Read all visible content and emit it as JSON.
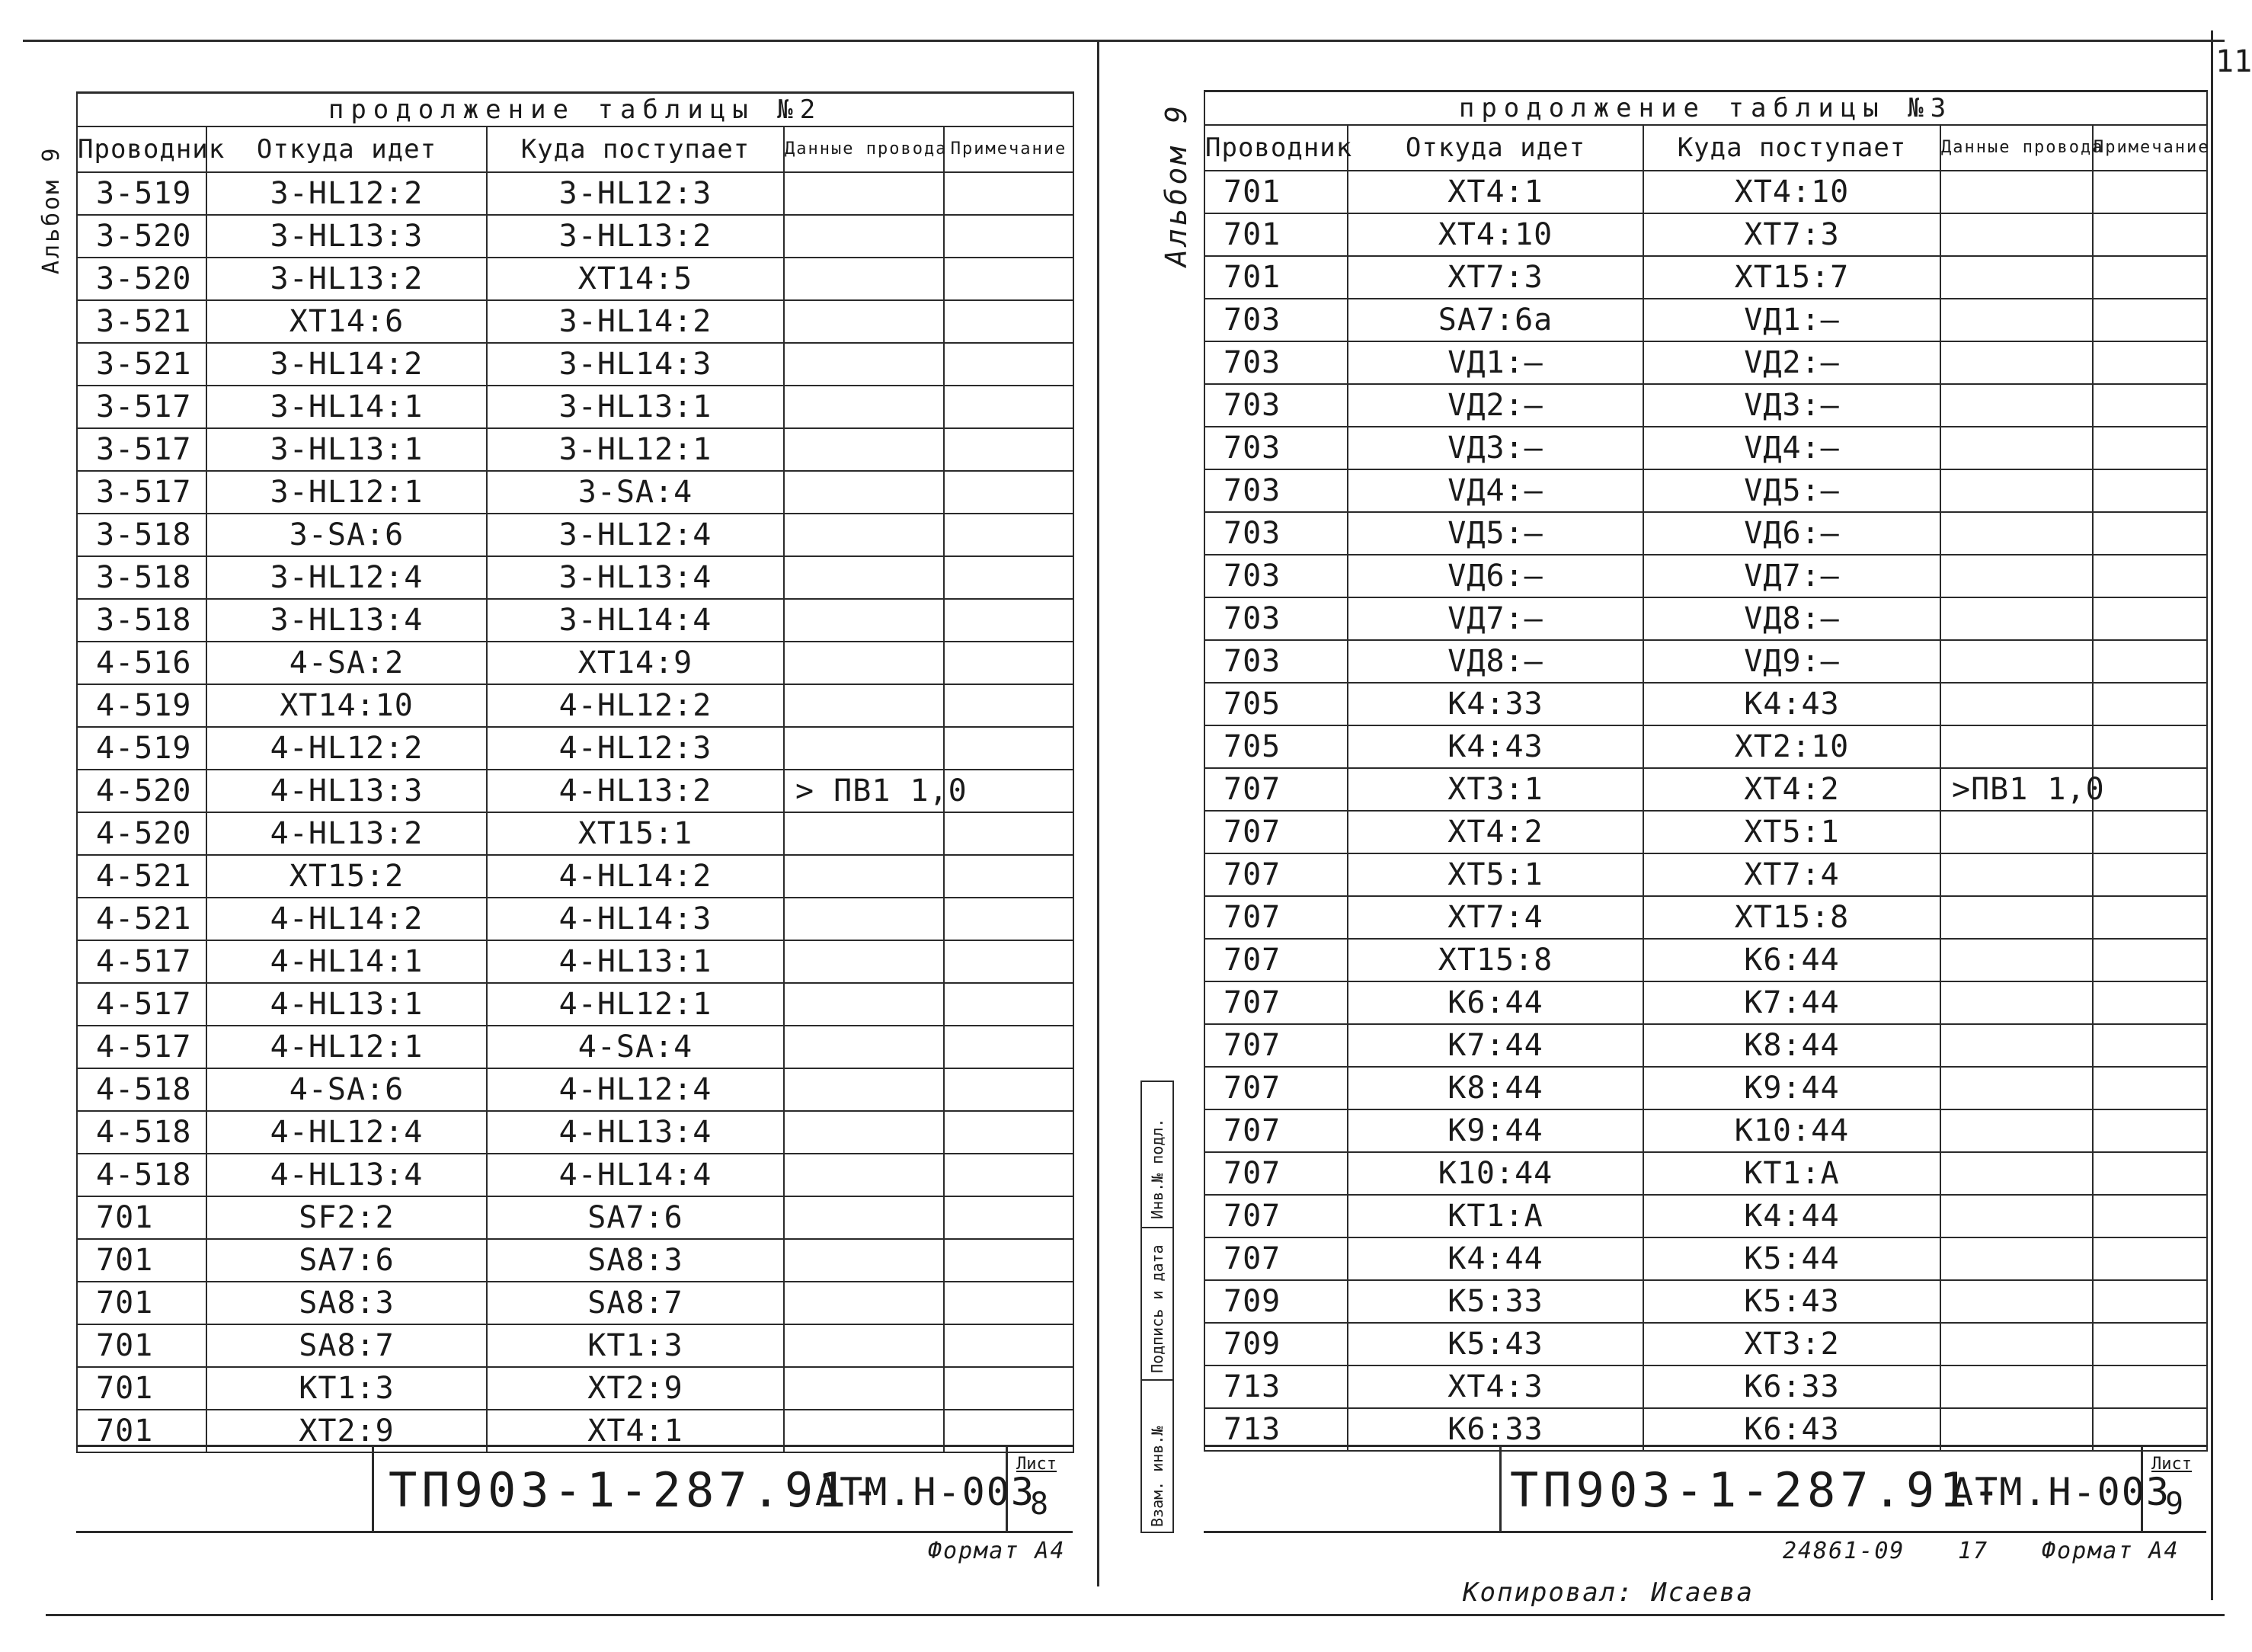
{
  "left_sheet": {
    "caption": "продолжение таблицы №2",
    "album_label": "Альбом 9",
    "headers": [
      "Проводник",
      "Откуда идет",
      "Куда поступает",
      "Данные провода",
      "Примечание"
    ],
    "rows": [
      [
        "3-519",
        "3-HL12:2",
        "3-HL12:3",
        "",
        ""
      ],
      [
        "3-520",
        "3-HL13:3",
        "3-HL13:2",
        "",
        ""
      ],
      [
        "3-520",
        "3-HL13:2",
        "XT14:5",
        "",
        ""
      ],
      [
        "3-521",
        "XT14:6",
        "3-HL14:2",
        "",
        ""
      ],
      [
        "3-521",
        "3-HL14:2",
        "3-HL14:3",
        "",
        ""
      ],
      [
        "3-517",
        "3-HL14:1",
        "3-HL13:1",
        "",
        ""
      ],
      [
        "3-517",
        "3-HL13:1",
        "3-HL12:1",
        "",
        ""
      ],
      [
        "3-517",
        "3-HL12:1",
        "3-SA:4",
        "",
        ""
      ],
      [
        "3-518",
        "3-SA:6",
        "3-HL12:4",
        "",
        ""
      ],
      [
        "3-518",
        "3-HL12:4",
        "3-HL13:4",
        "",
        ""
      ],
      [
        "3-518",
        "3-HL13:4",
        "3-HL14:4",
        "",
        ""
      ],
      [
        "4-516",
        "4-SA:2",
        "XT14:9",
        "",
        ""
      ],
      [
        "4-519",
        "XT14:10",
        "4-HL12:2",
        "",
        ""
      ],
      [
        "4-519",
        "4-HL12:2",
        "4-HL12:3",
        "",
        ""
      ],
      [
        "4-520",
        "4-HL13:3",
        "4-HL13:2",
        "> ПВ1 1,0",
        ""
      ],
      [
        "4-520",
        "4-HL13:2",
        "XT15:1",
        "",
        ""
      ],
      [
        "4-521",
        "XT15:2",
        "4-HL14:2",
        "",
        ""
      ],
      [
        "4-521",
        "4-HL14:2",
        "4-HL14:3",
        "",
        ""
      ],
      [
        "4-517",
        "4-HL14:1",
        "4-HL13:1",
        "",
        ""
      ],
      [
        "4-517",
        "4-HL13:1",
        "4-HL12:1",
        "",
        ""
      ],
      [
        "4-517",
        "4-HL12:1",
        "4-SA:4",
        "",
        ""
      ],
      [
        "4-518",
        "4-SA:6",
        "4-HL12:4",
        "",
        ""
      ],
      [
        "4-518",
        "4-HL12:4",
        "4-HL13:4",
        "",
        ""
      ],
      [
        "4-518",
        "4-HL13:4",
        "4-HL14:4",
        "",
        ""
      ],
      [
        "701",
        "SF2:2",
        "SA7:6",
        "",
        ""
      ],
      [
        "701",
        "SA7:6",
        "SA8:3",
        "",
        ""
      ],
      [
        "701",
        "SA8:3",
        "SA8:7",
        "",
        ""
      ],
      [
        "701",
        "SA8:7",
        "KT1:3",
        "",
        ""
      ],
      [
        "701",
        "KT1:3",
        "XT2:9",
        "",
        ""
      ],
      [
        "701",
        "XT2:9",
        "XT4:1",
        "",
        ""
      ]
    ],
    "doc_code": "ТП903-1-287.91-",
    "doc_suffix": "АТМ.Н-003",
    "sheet_label": "Лист",
    "sheet_number": "8",
    "format": "Формат А4"
  },
  "right_sheet": {
    "caption": "продолжение таблицы №3",
    "album_label": "Альбом 9",
    "headers": [
      "Проводник",
      "Откуда идет",
      "Куда поступает",
      "Данные провода",
      "Примечание"
    ],
    "rows": [
      [
        "701",
        "XT4:1",
        "XT4:10",
        "",
        ""
      ],
      [
        "701",
        "XT4:10",
        "XT7:3",
        "",
        ""
      ],
      [
        "701",
        "XT7:3",
        "XT15:7",
        "",
        ""
      ],
      [
        "703",
        "SA7:6a",
        "VД1:—",
        "",
        ""
      ],
      [
        "703",
        "VД1:—",
        "VД2:—",
        "",
        ""
      ],
      [
        "703",
        "VД2:—",
        "VД3:—",
        "",
        ""
      ],
      [
        "703",
        "VД3:—",
        "VД4:—",
        "",
        ""
      ],
      [
        "703",
        "VД4:—",
        "VД5:—",
        "",
        ""
      ],
      [
        "703",
        "VД5:—",
        "VД6:—",
        "",
        ""
      ],
      [
        "703",
        "VД6:—",
        "VД7:—",
        "",
        ""
      ],
      [
        "703",
        "VД7:—",
        "VД8:—",
        "",
        ""
      ],
      [
        "703",
        "VД8:—",
        "VД9:—",
        "",
        ""
      ],
      [
        "705",
        "K4:33",
        "K4:43",
        "",
        ""
      ],
      [
        "705",
        "K4:43",
        "XT2:10",
        "",
        ""
      ],
      [
        "707",
        "XT3:1",
        "XT4:2",
        ">ПВ1 1,0",
        ""
      ],
      [
        "707",
        "XT4:2",
        "XT5:1",
        "",
        ""
      ],
      [
        "707",
        "XT5:1",
        "XT7:4",
        "",
        ""
      ],
      [
        "707",
        "XT7:4",
        "XT15:8",
        "",
        ""
      ],
      [
        "707",
        "XT15:8",
        "K6:44",
        "",
        ""
      ],
      [
        "707",
        "K6:44",
        "K7:44",
        "",
        ""
      ],
      [
        "707",
        "K7:44",
        "K8:44",
        "",
        ""
      ],
      [
        "707",
        "K8:44",
        "K9:44",
        "",
        ""
      ],
      [
        "707",
        "K9:44",
        "K10:44",
        "",
        ""
      ],
      [
        "707",
        "K10:44",
        "KT1:A",
        "",
        ""
      ],
      [
        "707",
        "KT1:A",
        "K4:44",
        "",
        ""
      ],
      [
        "707",
        "K4:44",
        "K5:44",
        "",
        ""
      ],
      [
        "709",
        "K5:33",
        "K5:43",
        "",
        ""
      ],
      [
        "709",
        "K5:43",
        "XT3:2",
        "",
        ""
      ],
      [
        "713",
        "XT4:3",
        "K6:33",
        "",
        ""
      ],
      [
        "713",
        "K6:33",
        "K6:43",
        "",
        ""
      ]
    ],
    "side_stamp": [
      "Инв.№ подл.",
      "Подпись и дата",
      "Взам. инв.№"
    ],
    "doc_code": "ТП903-1-287.91-",
    "doc_suffix": "АТМ.Н-003",
    "sheet_label": "Лист",
    "sheet_number": "9",
    "archive_number": "24861-09",
    "archive_sheet": "17",
    "format": "Формат А4",
    "page_corner": "11",
    "copied_by": "Копировал: Исаева"
  }
}
